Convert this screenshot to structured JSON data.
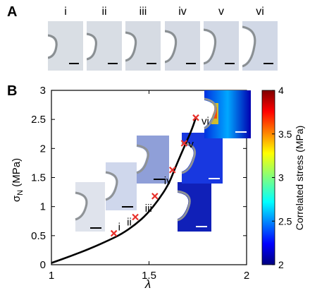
{
  "panels": {
    "a": "A",
    "b": "B"
  },
  "top_strip": {
    "labels": [
      "i",
      "ii",
      "iii",
      "iv",
      "v",
      "vi"
    ]
  },
  "colorbar": {
    "label": "Correlated stress (MPa)",
    "ticks": [
      "4",
      "3.5",
      "3",
      "2.5",
      "2"
    ],
    "colors": [
      "#00007f",
      "#0000ff",
      "#007fff",
      "#00ffff",
      "#7fff7f",
      "#ffff00",
      "#ff7f00",
      "#ff0000",
      "#7f0000"
    ]
  },
  "chart_data": {
    "type": "line",
    "xlabel": "λ",
    "ylabel": "σ_N (MPa)",
    "xlim": [
      1,
      2
    ],
    "ylim": [
      0,
      3
    ],
    "x_ticks": [
      "1",
      "1.5",
      "2"
    ],
    "y_ticks": [
      "0",
      "0.5",
      "1",
      "1.5",
      "2",
      "2.5",
      "3"
    ],
    "curve": {
      "x": [
        1.0,
        1.1,
        1.2,
        1.3,
        1.36,
        1.43,
        1.49,
        1.55,
        1.6,
        1.63,
        1.66,
        1.69,
        1.72,
        1.74
      ],
      "y": [
        0.03,
        0.15,
        0.28,
        0.43,
        0.53,
        0.69,
        0.87,
        1.12,
        1.38,
        1.63,
        1.87,
        2.1,
        2.33,
        2.53
      ]
    },
    "markers": {
      "x": [
        1.32,
        1.43,
        1.53,
        1.62,
        1.68,
        1.74
      ],
      "y": [
        0.54,
        0.82,
        1.18,
        1.63,
        2.09,
        2.53
      ],
      "labels": [
        "i",
        "ii",
        "iii",
        "iv",
        "v",
        "vi"
      ],
      "color": "#e8302a"
    }
  }
}
